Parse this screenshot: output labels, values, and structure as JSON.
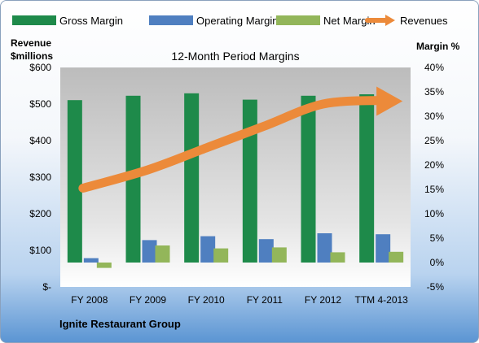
{
  "chart_data": {
    "type": "bar",
    "title": "12-Month Period Margins",
    "footer": "Ignite Restaurant Group",
    "categories": [
      "FY 2008",
      "FY 2009",
      "FY 2010",
      "FY 2011",
      "FY 2012",
      "TTM 4-2013"
    ],
    "series": [
      {
        "name": "Gross Margin",
        "type": "bar",
        "axis": "right",
        "values": [
          33.3,
          34.2,
          34.7,
          33.4,
          34.2,
          34.5
        ],
        "color": "#1e8a4a"
      },
      {
        "name": "Operating Margin",
        "type": "bar",
        "axis": "right",
        "values": [
          0.9,
          4.6,
          5.4,
          4.8,
          6.0,
          5.8
        ],
        "color": "#4f7fc0"
      },
      {
        "name": "Net Margin",
        "type": "bar",
        "axis": "right",
        "values": [
          -1.1,
          3.5,
          2.9,
          3.1,
          2.1,
          2.2
        ],
        "color": "#93b65a"
      },
      {
        "name": "Revenues",
        "type": "arrow-line",
        "axis": "left",
        "values": [
          270,
          320,
          380,
          440,
          500,
          510
        ],
        "color": "#ec8a3a"
      }
    ],
    "left_axis": {
      "label_line1": "Revenue",
      "label_line2": "$millions",
      "ylim": [
        0,
        600
      ],
      "ticks": [
        0,
        100,
        200,
        300,
        400,
        500,
        600
      ],
      "tick_labels": [
        "$-",
        "$100",
        "$200",
        "$300",
        "$400",
        "$500",
        "$600"
      ]
    },
    "right_axis": {
      "label": "Margin %",
      "ylim": [
        -5,
        40
      ],
      "ticks": [
        -5,
        0,
        5,
        10,
        15,
        20,
        25,
        30,
        35,
        40
      ],
      "tick_labels": [
        "-5%",
        "0%",
        "5%",
        "10%",
        "15%",
        "20%",
        "25%",
        "30%",
        "35%",
        "40%"
      ]
    },
    "legend_position": "top",
    "grid": false
  }
}
